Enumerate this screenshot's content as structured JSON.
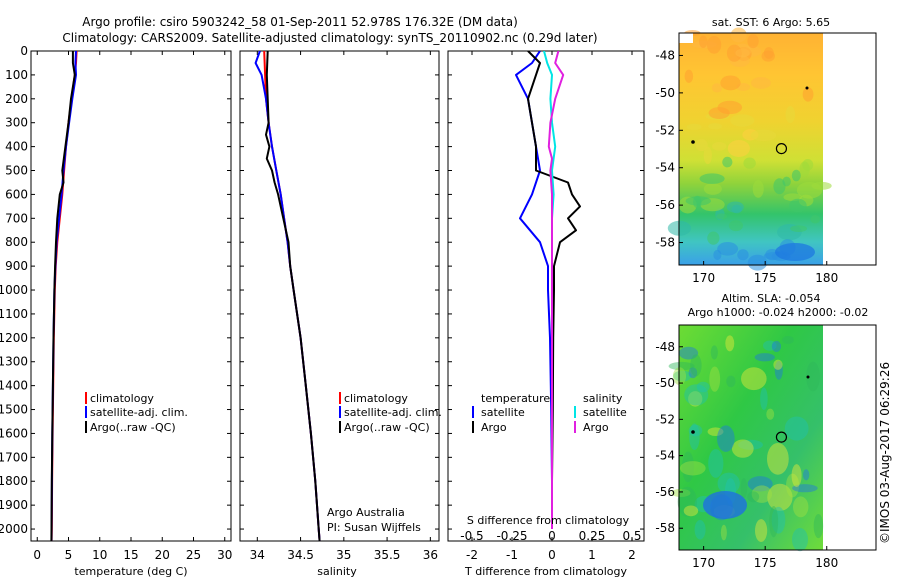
{
  "title": {
    "line1": "Argo profile: csiro 5903242_58 01-Sep-2011 52.978S 176.32E (DM data)",
    "line2": "Climatology: CARS2009. Satellite-adjusted climatology: synTS_20110902.nc (0.29d later)"
  },
  "colors": {
    "climatology": "#ff0000",
    "satellite": "#0000ff",
    "argo": "#000000",
    "satellite_salinity": "#00e5e5",
    "argo_salinity": "#e020e0",
    "frame": "#000000"
  },
  "depth_axis": {
    "ylim": [
      0,
      2050
    ],
    "ticks": [
      "0",
      "100",
      "200",
      "300",
      "400",
      "500",
      "600",
      "700",
      "800",
      "900",
      "1000",
      "1100",
      "1200",
      "1300",
      "1400",
      "1500",
      "1600",
      "1700",
      "1800",
      "1900",
      "2000"
    ]
  },
  "panels": {
    "temperature": {
      "xlabel": "temperature (deg C)",
      "xlim": [
        -1,
        31
      ],
      "xticks": [
        "0",
        "5",
        "10",
        "15",
        "20",
        "25",
        "30"
      ],
      "legend": [
        "climatology",
        "satellite-adj. clim.",
        "Argo(..raw -QC)"
      ]
    },
    "salinity": {
      "xlabel": "salinity",
      "xlim": [
        33.8,
        36.1
      ],
      "xticks": [
        "34",
        "34.5",
        "35",
        "35.5",
        "36"
      ],
      "legend": [
        "climatology",
        "satellite-adj. clim.",
        "Argo(..raw -QC)"
      ],
      "note_line1": "Argo Australia",
      "note_line2": "PI: Susan Wijffels"
    },
    "difference": {
      "top_label": "S difference from climatology",
      "top_ticks": [
        "-0.5",
        "-0.25",
        "0",
        "0.25",
        "0.5"
      ],
      "xlabel": "T difference from climatology",
      "xticks": [
        "-2",
        "-1",
        "0",
        "1",
        "2"
      ],
      "xlim": [
        -2.6,
        2.3
      ],
      "legend_temperature_title": "temperature",
      "legend_salinity_title": "salinity",
      "legend_satellite": "satellite",
      "legend_argo": "Argo",
      "legend_satellite_s": "satellite",
      "legend_argo_s": "Argo"
    }
  },
  "maps": {
    "sst": {
      "title": "sat. SST: 6 Argo: 5.65",
      "yticks": [
        "-48",
        "-50",
        "-52",
        "-54",
        "-56",
        "-58"
      ],
      "xticks": [
        "170",
        "175",
        "180"
      ]
    },
    "sla": {
      "title_line1": "Altim. SLA: -0.054",
      "title_line2": "Argo h1000: -0.024 h2000: -0.02",
      "yticks": [
        "-48",
        "-50",
        "-52",
        "-54",
        "-56",
        "-58"
      ],
      "xticks": [
        "170",
        "175",
        "180"
      ]
    },
    "lon_range": [
      168,
      184
    ],
    "lat_range": [
      -59.2,
      -46.8
    ],
    "float_position": {
      "lon": 176.32,
      "lat": -52.978
    }
  },
  "watermark": "©IMOS 03-Aug-2017 06:29:26",
  "chart_data": [
    {
      "type": "line",
      "title": "temperature",
      "xlabel": "temperature (deg C)",
      "ylabel": "depth",
      "xlim": [
        -1,
        31
      ],
      "ylim": [
        2050,
        0
      ],
      "series": [
        {
          "name": "climatology",
          "depth": [
            0,
            50,
            100,
            200,
            300,
            400,
            500,
            600,
            700,
            800,
            900,
            1000,
            1200,
            1400,
            1600,
            1800,
            2000,
            2050
          ],
          "values": [
            6.3,
            6.2,
            6.0,
            5.5,
            5.0,
            4.6,
            4.3,
            4.0,
            3.6,
            3.2,
            2.95,
            2.8,
            2.65,
            2.55,
            2.45,
            2.38,
            2.32,
            2.3
          ]
        },
        {
          "name": "satellite-adj. clim.",
          "depth": [
            0,
            50,
            100,
            200,
            300,
            400,
            500,
            600,
            700,
            800,
            900,
            1000,
            1200,
            1400,
            1600,
            1800,
            2000,
            2050
          ],
          "values": [
            6.2,
            6.1,
            6.2,
            5.6,
            5.1,
            4.6,
            4.2,
            3.9,
            3.5,
            3.1,
            2.9,
            2.75,
            2.6,
            2.5,
            2.4,
            2.35,
            2.3,
            2.28
          ]
        },
        {
          "name": "Argo(..raw -QC)",
          "depth": [
            0,
            50,
            100,
            200,
            300,
            400,
            500,
            550,
            600,
            700,
            800,
            900,
            1000,
            1200,
            1400,
            1600,
            1800,
            2000,
            2050
          ],
          "values": [
            5.7,
            5.7,
            6.0,
            5.4,
            5.0,
            4.5,
            4.0,
            4.2,
            3.6,
            3.2,
            3.0,
            2.85,
            2.75,
            2.6,
            2.5,
            2.4,
            2.33,
            2.28,
            2.27
          ]
        }
      ]
    },
    {
      "type": "line",
      "title": "salinity",
      "xlabel": "salinity",
      "ylabel": "depth",
      "xlim": [
        33.8,
        36.1
      ],
      "ylim": [
        2050,
        0
      ],
      "series": [
        {
          "name": "climatology",
          "depth": [
            0,
            100,
            200,
            300,
            400,
            500,
            600,
            700,
            800,
            900,
            1000,
            1200,
            1400,
            1600,
            1800,
            2000,
            2050
          ],
          "values": [
            34.08,
            34.09,
            34.1,
            34.13,
            34.17,
            34.22,
            34.27,
            34.31,
            34.35,
            34.38,
            34.42,
            34.5,
            34.56,
            34.62,
            34.67,
            34.71,
            34.72
          ]
        },
        {
          "name": "satellite-adj. clim.",
          "depth": [
            0,
            50,
            100,
            200,
            300,
            400,
            500,
            600,
            700,
            800,
            900,
            1000,
            1200,
            1400,
            1600,
            1800,
            2000,
            2050
          ],
          "values": [
            34.03,
            33.98,
            34.05,
            34.1,
            34.13,
            34.17,
            34.22,
            34.27,
            34.31,
            34.35,
            34.38,
            34.42,
            34.5,
            34.56,
            34.62,
            34.67,
            34.71,
            34.72
          ]
        },
        {
          "name": "Argo(..raw -QC)",
          "depth": [
            0,
            100,
            200,
            300,
            350,
            400,
            450,
            500,
            550,
            600,
            650,
            700,
            750,
            800,
            900,
            1000,
            1200,
            1400,
            1600,
            1800,
            2000,
            2050
          ],
          "values": [
            34.12,
            34.11,
            34.12,
            34.13,
            34.1,
            34.14,
            34.11,
            34.17,
            34.2,
            34.24,
            34.27,
            34.3,
            34.33,
            34.36,
            34.38,
            34.42,
            34.5,
            34.56,
            34.62,
            34.67,
            34.71,
            34.72
          ]
        }
      ]
    },
    {
      "type": "line",
      "title": "difference from climatology",
      "xlabel": "T difference from climatology",
      "x2label": "S difference from climatology",
      "ylabel": "depth",
      "xlim": [
        -2.6,
        2.3
      ],
      "ylim": [
        2050,
        0
      ],
      "series": [
        {
          "name": "temperature satellite",
          "depth": [
            0,
            50,
            100,
            200,
            300,
            400,
            500,
            600,
            700,
            800,
            900,
            1000,
            1200,
            1500,
            1800,
            2000
          ],
          "values": [
            -0.3,
            -0.5,
            -0.9,
            -0.6,
            -0.5,
            -0.4,
            -0.3,
            -0.5,
            -0.8,
            -0.3,
            -0.1,
            -0.1,
            -0.05,
            -0.02,
            0.0,
            0.0
          ]
        },
        {
          "name": "temperature Argo",
          "depth": [
            0,
            50,
            100,
            200,
            300,
            400,
            500,
            550,
            600,
            650,
            700,
            750,
            800,
            900,
            1000,
            1200,
            1500,
            1800,
            2000
          ],
          "values": [
            -0.6,
            -0.3,
            -0.4,
            -0.6,
            -0.5,
            -0.4,
            -0.4,
            0.4,
            0.5,
            0.7,
            0.4,
            0.6,
            0.2,
            0.05,
            0.05,
            0.03,
            0.02,
            0.0,
            0.0
          ]
        },
        {
          "name": "salinity satellite",
          "depth": [
            0,
            50,
            100,
            200,
            300,
            400,
            500,
            600,
            700,
            800,
            900,
            1000,
            1200,
            1500,
            1800,
            2000
          ],
          "values": [
            -0.05,
            -0.03,
            0.0,
            -0.01,
            0.0,
            0.02,
            0.0,
            0.01,
            0.0,
            0.0,
            0.0,
            0.0,
            0.0,
            0.0,
            0.0,
            0.0
          ]
        },
        {
          "name": "salinity Argo",
          "depth": [
            0,
            50,
            100,
            200,
            300,
            400,
            450,
            500,
            600,
            700,
            800,
            900,
            1000,
            1200,
            1500,
            1800,
            2000
          ],
          "values": [
            0.04,
            0.02,
            0.07,
            0.02,
            -0.01,
            -0.02,
            0.0,
            -0.01,
            0.0,
            0.0,
            0.0,
            0.0,
            0.0,
            0.0,
            0.0,
            0.0,
            0.0
          ]
        }
      ]
    }
  ]
}
